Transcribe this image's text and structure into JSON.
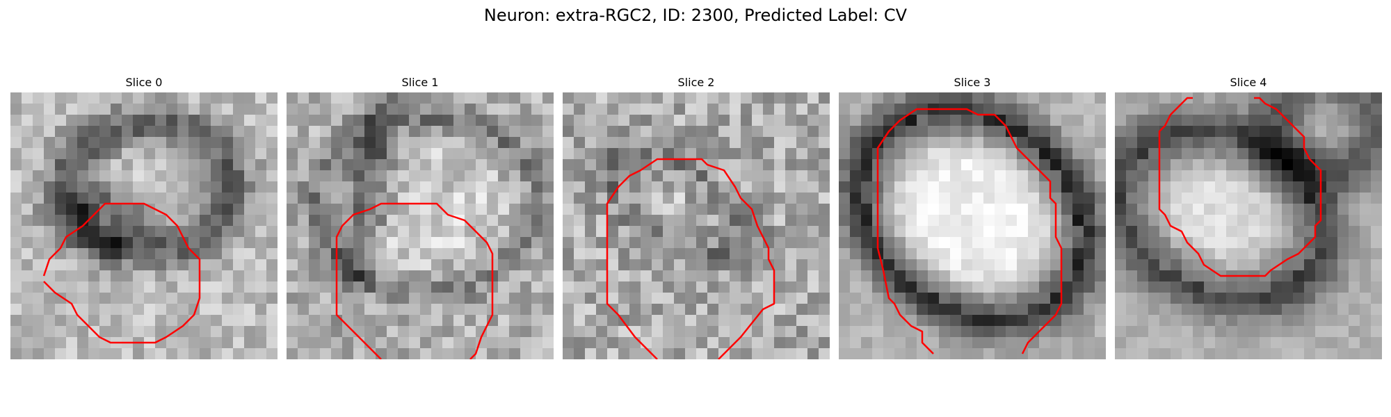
{
  "figure": {
    "title": "Neuron: extra-RGC2, ID: 2300, Predicted Label: CV"
  },
  "panels": [
    {
      "title": "Slice 0",
      "mask_color": "#ff0000"
    },
    {
      "title": "Slice 1",
      "mask_color": "#ff0000"
    },
    {
      "title": "Slice 2",
      "mask_color": "#ff0000"
    },
    {
      "title": "Slice 3",
      "mask_color": "#ff0000"
    },
    {
      "title": "Slice 4",
      "mask_color": "#ff0000"
    }
  ]
}
